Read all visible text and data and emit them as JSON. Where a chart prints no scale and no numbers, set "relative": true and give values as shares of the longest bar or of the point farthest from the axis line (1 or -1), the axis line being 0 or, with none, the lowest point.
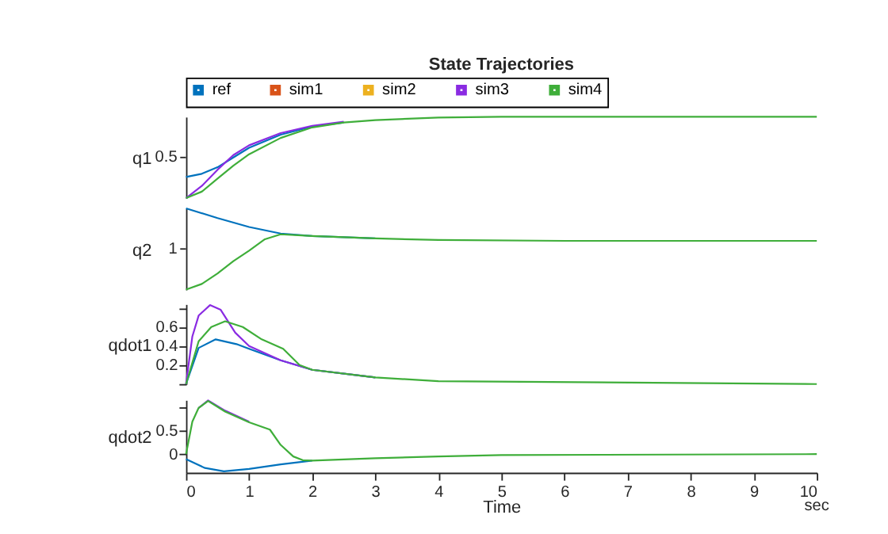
{
  "chart_data": [
    {
      "type": "line",
      "title": "State Trajectories",
      "ylabel": "q1",
      "relative": true,
      "legend": "top",
      "grid": false,
      "tick_labels": false,
      "xlim": [
        0,
        10
      ],
      "xticks": [
        0,
        1,
        2,
        3,
        4,
        5,
        6,
        7,
        8,
        9,
        10
      ],
      "annotations": [
        "0.5"
      ],
      "series": [
        {
          "name": "ref",
          "color": "#0072bd",
          "x": [
            0,
            0.25,
            0.5,
            0.75,
            1,
            1.5,
            2,
            2.5
          ],
          "values": [
            0.26,
            0.3,
            0.38,
            0.5,
            0.62,
            0.78,
            0.88,
            0.93
          ]
        },
        {
          "name": "sim1",
          "color": "#d95319",
          "values": [
            null
          ]
        },
        {
          "name": "sim2",
          "color": "#edb120",
          "values": [
            null
          ]
        },
        {
          "name": "sim3",
          "color": "#8a2be2",
          "x": [
            0,
            0.25,
            0.5,
            0.75,
            1,
            1.5,
            2,
            2.5
          ],
          "values": [
            0,
            0.15,
            0.35,
            0.53,
            0.65,
            0.8,
            0.89,
            0.94
          ]
        },
        {
          "name": "sim4",
          "color": "#3fae3a",
          "x": [
            0,
            0.25,
            0.5,
            0.75,
            1,
            1.5,
            2,
            2.5,
            3,
            4,
            5,
            10
          ],
          "values": [
            0,
            0.08,
            0.24,
            0.4,
            0.54,
            0.74,
            0.87,
            0.93,
            0.96,
            0.99,
            1.0,
            1.0
          ]
        }
      ]
    },
    {
      "type": "line",
      "ylabel": "q2",
      "relative": true,
      "grid": false,
      "tick_labels": false,
      "xlim": [
        0,
        10
      ],
      "xticks": [
        0,
        1,
        2,
        3,
        4,
        5,
        6,
        7,
        8,
        9,
        10
      ],
      "annotations": [
        "1"
      ],
      "series": [
        {
          "color": "#0072bd",
          "x": [
            0,
            0.5,
            1,
            1.5,
            2,
            3
          ],
          "values": [
            1.0,
            0.88,
            0.77,
            0.69,
            0.66,
            0.63
          ]
        },
        {
          "color": "#d95319",
          "values": [
            null
          ]
        },
        {
          "color": "#edb120",
          "values": [
            null
          ]
        },
        {
          "color": "#8a2be2",
          "values": [
            null
          ]
        },
        {
          "color": "#3fae3a",
          "x": [
            0,
            0.25,
            0.5,
            0.75,
            1,
            1.25,
            1.5,
            2,
            3,
            4,
            6,
            10
          ],
          "values": [
            0,
            0.07,
            0.2,
            0.35,
            0.48,
            0.62,
            0.68,
            0.66,
            0.63,
            0.61,
            0.6,
            0.6
          ]
        }
      ]
    },
    {
      "type": "line",
      "ylabel": "qdot1",
      "grid": false,
      "tick_labels": "y",
      "xlim": [
        0,
        10
      ],
      "xticks": [
        0,
        1,
        2,
        3,
        4,
        5,
        6,
        7,
        8,
        9,
        10
      ],
      "ylim": [
        0,
        0.84
      ],
      "yticks": [
        {
          "value": 0,
          "label": null
        },
        0.2,
        0.4,
        0.6,
        {
          "value": 0.8,
          "label": null
        }
      ],
      "series": [
        {
          "color": "#0072bd",
          "x": [
            0,
            0.2,
            0.47,
            0.8,
            1,
            1.5,
            2,
            3
          ],
          "values": [
            0,
            0.38,
            0.47,
            0.42,
            0.37,
            0.25,
            0.15,
            0.07
          ]
        },
        {
          "color": "#d95319",
          "values": [
            null
          ]
        },
        {
          "color": "#edb120",
          "values": [
            null
          ]
        },
        {
          "color": "#8a2be2",
          "x": [
            0,
            0.1,
            0.2,
            0.38,
            0.55,
            0.78,
            1,
            1.5,
            2,
            3
          ],
          "values": [
            0,
            0.5,
            0.72,
            0.83,
            0.78,
            0.54,
            0.4,
            0.25,
            0.15,
            0.07
          ]
        },
        {
          "color": "#3fae3a",
          "x": [
            0,
            0.2,
            0.4,
            0.62,
            0.9,
            1.2,
            1.54,
            1.8,
            2,
            3,
            4,
            10
          ],
          "values": [
            0,
            0.45,
            0.6,
            0.66,
            0.6,
            0.47,
            0.37,
            0.2,
            0.15,
            0.07,
            0.03,
            0
          ]
        }
      ]
    },
    {
      "type": "line",
      "ylabel": "qdot2",
      "xlabel": "Time",
      "grid": false,
      "xlim": [
        0,
        10
      ],
      "xticks": [
        0,
        1,
        2,
        3,
        4,
        5,
        6,
        7,
        8,
        9,
        10
      ],
      "ylim": [
        -0.4,
        1.17
      ],
      "yticks": [
        0,
        0.5,
        {
          "value": 1,
          "label": null
        }
      ],
      "annotations": [
        "sec"
      ],
      "series": [
        {
          "color": "#0072bd",
          "x": [
            0,
            0.3,
            0.6,
            1,
            1.5,
            2
          ],
          "values": [
            -0.11,
            -0.3,
            -0.37,
            -0.32,
            -0.22,
            -0.14
          ]
        },
        {
          "color": "#d95319",
          "values": [
            null
          ]
        },
        {
          "color": "#edb120",
          "values": [
            null
          ]
        },
        {
          "color": "#8a2be2",
          "x": [
            0.2,
            0.35,
            0.62,
            1
          ],
          "values": [
            1.0,
            1.16,
            0.94,
            0.7
          ]
        },
        {
          "color": "#3fae3a",
          "x": [
            0,
            0.1,
            0.2,
            0.35,
            0.62,
            1,
            1.33,
            1.5,
            1.7,
            1.85,
            2,
            3,
            4,
            5,
            10
          ],
          "values": [
            0,
            0.7,
            1.0,
            1.15,
            0.92,
            0.69,
            0.53,
            0.2,
            -0.05,
            -0.13,
            -0.14,
            -0.09,
            -0.05,
            -0.02,
            0
          ]
        }
      ]
    }
  ]
}
